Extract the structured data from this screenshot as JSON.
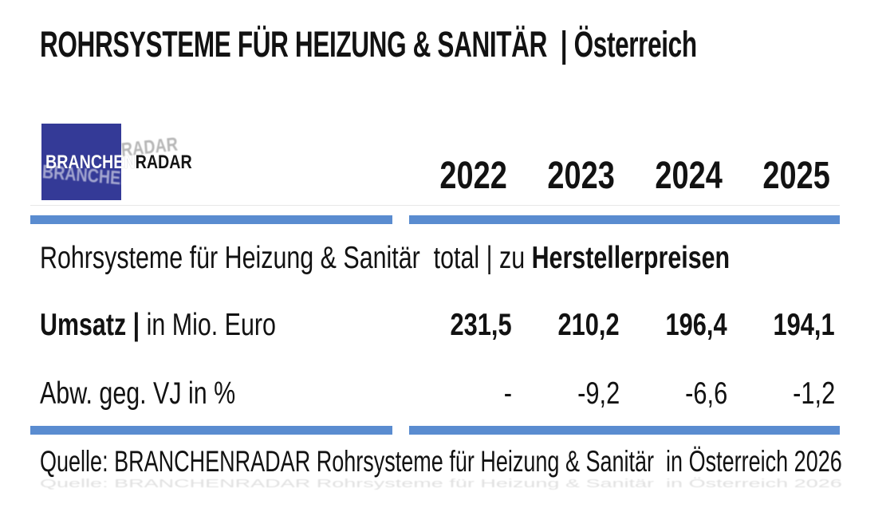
{
  "title": "ROHRSYSTEME FÜR HEIZUNG & SANITÄR  | Österreich",
  "logo": {
    "primary": "BRANCHEN",
    "secondary": "RADAR"
  },
  "colors": {
    "accent_bar": "#5A8CD0",
    "logo_blue": "#343A97"
  },
  "table": {
    "years": [
      "2022",
      "2023",
      "2024",
      "2025"
    ],
    "section": {
      "regular": "Rohrsysteme für Heizung & Sanitär  total | zu ",
      "bold": "Herstellerpreisen"
    },
    "rows": [
      {
        "label_bold": "Umsatz |",
        "label_regular": " in Mio. Euro",
        "values": [
          "231,5",
          "210,2",
          "196,4",
          "194,1"
        ]
      },
      {
        "label_bold": "",
        "label_regular": "Abw. geg. VJ in %",
        "values": [
          "-",
          "-9,2",
          "-6,6",
          "-1,2"
        ]
      }
    ]
  },
  "source": "Quelle: BRANCHENRADAR Rohrsysteme für Heizung & Sanitär  in Österreich 2026",
  "chart_data": {
    "type": "table",
    "title": "ROHRSYSTEME FÜR HEIZUNG & SANITÄR | Österreich",
    "section": "Rohrsysteme für Heizung & Sanitär total | zu Herstellerpreisen",
    "categories": [
      "2022",
      "2023",
      "2024",
      "2025"
    ],
    "series": [
      {
        "name": "Umsatz | in Mio. Euro",
        "values": [
          231.5,
          210.2,
          196.4,
          194.1
        ]
      },
      {
        "name": "Abw. geg. VJ in %",
        "values": [
          null,
          -9.2,
          -6.6,
          -1.2
        ]
      }
    ],
    "source": "Quelle: BRANCHENRADAR Rohrsysteme für Heizung & Sanitär in Österreich 2026"
  }
}
